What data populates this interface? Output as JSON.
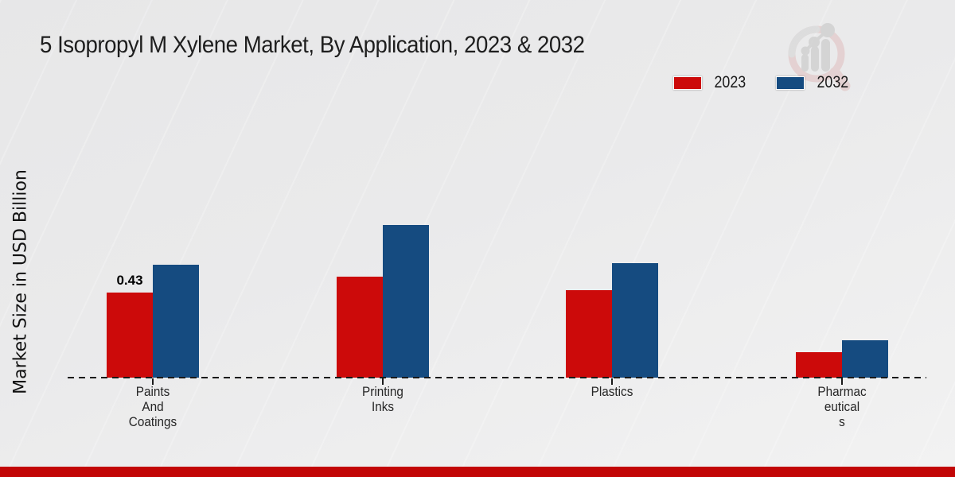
{
  "chart_data": {
    "type": "bar",
    "title": "5 Isopropyl M Xylene Market, By Application, 2023 & 2032",
    "xlabel": "",
    "ylabel": "Market Size in USD Billion",
    "categories": [
      "Paints And Coatings",
      "Printing Inks",
      "Plastics",
      "Pharmaceuticals"
    ],
    "category_label_lines": [
      [
        "Paints",
        "And",
        "Coatings"
      ],
      [
        "Printing",
        "Inks"
      ],
      [
        "Plastics"
      ],
      [
        "Pharmac",
        "eutical",
        "s"
      ]
    ],
    "series": [
      {
        "name": "2023",
        "color": "#CC0A0A",
        "values": [
          0.43,
          0.51,
          0.44,
          0.13
        ]
      },
      {
        "name": "2032",
        "color": "#154B80",
        "values": [
          0.57,
          0.77,
          0.58,
          0.19
        ]
      }
    ],
    "annotations": [
      {
        "category_index": 0,
        "series_index": 0,
        "text": "0.43"
      }
    ],
    "ylim": [
      0,
      1.0
    ],
    "grid": false,
    "y_axis_visible": false,
    "x_axis_style": "dashed",
    "legend_position": "top-right"
  },
  "watermark": {
    "name": "magnifier-bar-chart-logo"
  },
  "footer": {
    "accent_color": "#C20606"
  },
  "colors": {
    "background_top": "#E8E8E9",
    "background_bottom": "#F2F2F2",
    "axis": "#1A1A1A",
    "title_text": "#1E1E1E"
  }
}
